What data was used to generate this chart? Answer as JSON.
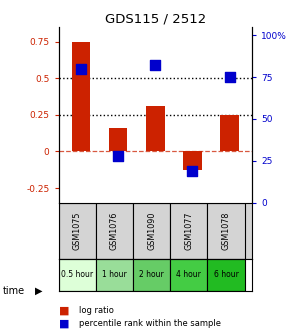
{
  "title": "GDS115 / 2512",
  "samples": [
    "GSM1075",
    "GSM1076",
    "GSM1090",
    "GSM1077",
    "GSM1078"
  ],
  "time_labels": [
    "0.5 hour",
    "1 hour",
    "2 hour",
    "4 hour",
    "6 hour"
  ],
  "log_ratio": [
    0.75,
    0.16,
    0.31,
    -0.13,
    0.25
  ],
  "percentile_pct": [
    80,
    28,
    82,
    19,
    75
  ],
  "bar_color": "#cc2200",
  "dot_color": "#0000cc",
  "ylim_left": [
    -0.35,
    0.85
  ],
  "ylim_right": [
    0,
    105
  ],
  "yticks_left": [
    -0.25,
    0.0,
    0.25,
    0.5,
    0.75
  ],
  "ytick_labels_left": [
    "-0.25",
    "0",
    "0.25",
    "0.5",
    "0.75"
  ],
  "yticks_right": [
    0,
    25,
    50,
    75,
    100
  ],
  "ytick_labels_right": [
    "0",
    "25",
    "50",
    "75",
    "100%"
  ],
  "hline_dotted": [
    0.25,
    0.5
  ],
  "hline_dashed_val": 0.0,
  "bar_width": 0.5,
  "dot_size": 45,
  "sample_bg": "#d4d4d4",
  "time_colors": [
    "#ddffd8",
    "#99dd99",
    "#66cc66",
    "#44cc44",
    "#22bb22"
  ],
  "legend_bar_label": "log ratio",
  "legend_dot_label": "percentile rank within the sample"
}
